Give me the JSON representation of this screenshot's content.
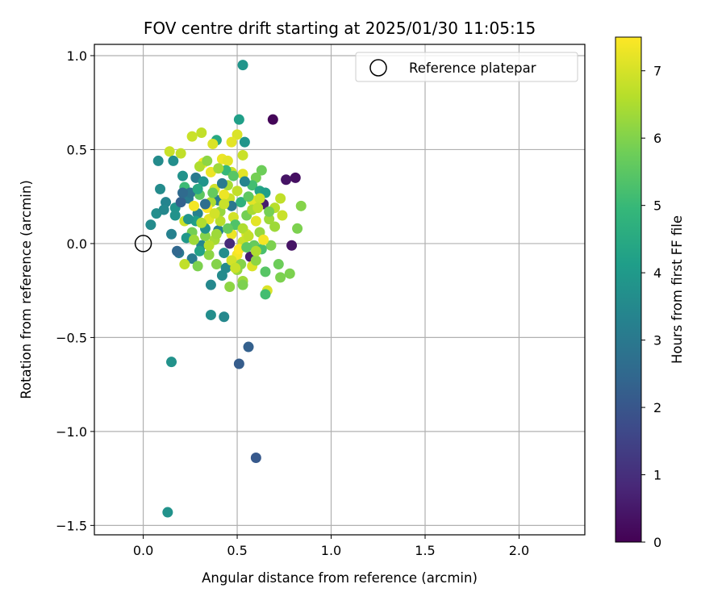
{
  "chart_data": {
    "type": "scatter",
    "title": "FOV centre drift starting at 2025/01/30 11:05:15",
    "xlabel": "Angular distance from reference (arcmin)",
    "ylabel": "Rotation from reference (arcmin)",
    "xlim": [
      -0.26,
      2.35
    ],
    "ylim": [
      -1.55,
      1.06
    ],
    "xticks": [
      0.0,
      0.5,
      1.0,
      1.5,
      2.0
    ],
    "xtick_labels": [
      "0.0",
      "0.5",
      "1.0",
      "1.5",
      "2.0"
    ],
    "yticks": [
      -1.5,
      -1.0,
      -0.5,
      0.0,
      0.5,
      1.0
    ],
    "ytick_labels": [
      "−1.5",
      "−1.0",
      "−0.5",
      "0.0",
      "0.5",
      "1.0"
    ],
    "grid": true,
    "legend": {
      "position": "top-right",
      "entries": [
        "Reference platepar"
      ]
    },
    "reference_point": {
      "x": 0.0,
      "y": 0.0,
      "name": "Reference platepar"
    },
    "colorbar": {
      "label": "Hours from first FF file",
      "range": [
        0,
        7.5
      ],
      "ticks": [
        0,
        1,
        2,
        3,
        4,
        5,
        6,
        7
      ],
      "tick_labels": [
        "0",
        "1",
        "2",
        "3",
        "4",
        "5",
        "6",
        "7"
      ],
      "colormap": [
        "#440154",
        "#482878",
        "#3e4989",
        "#31688e",
        "#26828e",
        "#1f9e89",
        "#35b779",
        "#6ece58",
        "#b5de2b",
        "#fde725"
      ]
    },
    "points": [
      [
        0.53,
        0.95,
        3.9
      ],
      [
        0.51,
        0.66,
        4.2
      ],
      [
        0.69,
        0.66,
        0.1
      ],
      [
        0.5,
        0.58,
        7.1
      ],
      [
        0.54,
        0.54,
        3.9
      ],
      [
        0.47,
        0.54,
        7.2
      ],
      [
        0.31,
        0.59,
        6.8
      ],
      [
        0.26,
        0.57,
        6.9
      ],
      [
        0.39,
        0.55,
        4.5
      ],
      [
        0.14,
        0.49,
        6.9
      ],
      [
        0.2,
        0.48,
        6.8
      ],
      [
        0.08,
        0.44,
        3.6
      ],
      [
        0.16,
        0.44,
        3.7
      ],
      [
        0.37,
        0.53,
        7.1
      ],
      [
        0.42,
        0.45,
        7.3
      ],
      [
        0.32,
        0.43,
        7.4
      ],
      [
        0.45,
        0.44,
        7.2
      ],
      [
        0.53,
        0.47,
        6.9
      ],
      [
        0.63,
        0.39,
        5.8
      ],
      [
        0.76,
        0.34,
        0.4
      ],
      [
        0.81,
        0.35,
        0.3
      ],
      [
        0.21,
        0.36,
        3.8
      ],
      [
        0.28,
        0.35,
        3.1
      ],
      [
        0.36,
        0.38,
        7.3
      ],
      [
        0.47,
        0.38,
        6.9
      ],
      [
        0.53,
        0.37,
        7.2
      ],
      [
        0.6,
        0.35,
        5.9
      ],
      [
        0.09,
        0.29,
        3.6
      ],
      [
        0.22,
        0.3,
        5.1
      ],
      [
        0.32,
        0.33,
        3.9
      ],
      [
        0.38,
        0.29,
        7.0
      ],
      [
        0.45,
        0.31,
        6.5
      ],
      [
        0.58,
        0.31,
        5.2
      ],
      [
        0.62,
        0.28,
        4.4
      ],
      [
        0.65,
        0.27,
        4.2
      ],
      [
        0.12,
        0.22,
        3.4
      ],
      [
        0.17,
        0.19,
        3.9
      ],
      [
        0.24,
        0.24,
        3.1
      ],
      [
        0.3,
        0.26,
        5.6
      ],
      [
        0.4,
        0.23,
        3.2
      ],
      [
        0.46,
        0.24,
        6.9
      ],
      [
        0.52,
        0.22,
        4.8
      ],
      [
        0.58,
        0.23,
        7.2
      ],
      [
        0.64,
        0.21,
        0.6
      ],
      [
        0.73,
        0.24,
        6.8
      ],
      [
        0.84,
        0.2,
        6.1
      ],
      [
        0.07,
        0.16,
        3.7
      ],
      [
        0.11,
        0.18,
        3.5
      ],
      [
        0.17,
        0.15,
        3.8
      ],
      [
        0.22,
        0.12,
        6.9
      ],
      [
        0.29,
        0.16,
        3.3
      ],
      [
        0.35,
        0.13,
        7.2
      ],
      [
        0.41,
        0.17,
        6.3
      ],
      [
        0.48,
        0.14,
        7.0
      ],
      [
        0.55,
        0.15,
        5.9
      ],
      [
        0.6,
        0.12,
        7.2
      ],
      [
        0.67,
        0.13,
        6.4
      ],
      [
        0.74,
        0.15,
        6.9
      ],
      [
        0.04,
        0.1,
        3.6
      ],
      [
        0.26,
        0.06,
        5.9
      ],
      [
        0.33,
        0.04,
        6.1
      ],
      [
        0.4,
        0.07,
        3.3
      ],
      [
        0.47,
        0.05,
        7.3
      ],
      [
        0.55,
        0.05,
        7.1
      ],
      [
        0.62,
        0.06,
        6.3
      ],
      [
        0.7,
        0.09,
        6.4
      ],
      [
        0.82,
        0.08,
        6.0
      ],
      [
        0.15,
        0.05,
        3.3
      ],
      [
        0.23,
        0.03,
        4.0
      ],
      [
        0.31,
        -0.01,
        3.5
      ],
      [
        0.38,
        0.02,
        6.5
      ],
      [
        0.46,
        0.0,
        0.9
      ],
      [
        0.53,
        0.01,
        6.9
      ],
      [
        0.59,
        -0.01,
        5.7
      ],
      [
        0.68,
        -0.01,
        6.0
      ],
      [
        0.79,
        -0.01,
        0.4
      ],
      [
        0.19,
        -0.05,
        3.0
      ],
      [
        0.26,
        -0.08,
        3.1
      ],
      [
        0.35,
        -0.06,
        6.2
      ],
      [
        0.43,
        -0.05,
        3.7
      ],
      [
        0.5,
        -0.06,
        7.4
      ],
      [
        0.57,
        -0.07,
        0.6
      ],
      [
        0.63,
        -0.03,
        5.3
      ],
      [
        0.72,
        -0.11,
        5.8
      ],
      [
        0.22,
        -0.11,
        6.8
      ],
      [
        0.29,
        -0.12,
        6.0
      ],
      [
        0.39,
        -0.11,
        6.1
      ],
      [
        0.44,
        -0.13,
        3.6
      ],
      [
        0.5,
        -0.14,
        6.3
      ],
      [
        0.58,
        -0.12,
        7.1
      ],
      [
        0.65,
        -0.15,
        5.5
      ],
      [
        0.78,
        -0.16,
        6.0
      ],
      [
        0.73,
        -0.18,
        6.0
      ],
      [
        0.53,
        -0.2,
        6.4
      ],
      [
        0.46,
        -0.23,
        6.2
      ],
      [
        0.36,
        -0.22,
        3.5
      ],
      [
        0.53,
        -0.22,
        6.0
      ],
      [
        0.66,
        -0.25,
        7.1
      ],
      [
        0.65,
        -0.27,
        5.2
      ],
      [
        0.36,
        -0.38,
        3.7
      ],
      [
        0.43,
        -0.39,
        3.5
      ],
      [
        0.56,
        -0.55,
        2.3
      ],
      [
        0.51,
        -0.64,
        2.2
      ],
      [
        0.15,
        -0.63,
        3.8
      ],
      [
        0.6,
        -1.14,
        2.1
      ],
      [
        0.13,
        -1.43,
        3.8
      ],
      [
        0.3,
        0.41,
        6.6
      ],
      [
        0.44,
        0.39,
        5.0
      ],
      [
        0.27,
        0.2,
        7.4
      ],
      [
        0.36,
        0.22,
        6.6
      ],
      [
        0.43,
        0.26,
        7.3
      ],
      [
        0.5,
        0.28,
        6.8
      ],
      [
        0.56,
        0.25,
        5.6
      ],
      [
        0.62,
        0.24,
        6.9
      ],
      [
        0.34,
        0.19,
        7.5
      ],
      [
        0.41,
        0.12,
        6.7
      ],
      [
        0.49,
        0.1,
        5.4
      ],
      [
        0.53,
        0.08,
        6.6
      ],
      [
        0.58,
        0.18,
        6.5
      ],
      [
        0.28,
        0.12,
        4.2
      ],
      [
        0.39,
        0.05,
        6.4
      ],
      [
        0.45,
        0.08,
        5.7
      ],
      [
        0.51,
        -0.03,
        7.5
      ],
      [
        0.56,
        0.04,
        6.8
      ],
      [
        0.33,
        0.08,
        3.8
      ],
      [
        0.2,
        0.22,
        2.3
      ],
      [
        0.25,
        0.27,
        2.9
      ],
      [
        0.33,
        0.21,
        2.7
      ],
      [
        0.47,
        0.2,
        3.0
      ],
      [
        0.42,
        0.32,
        3.1
      ],
      [
        0.54,
        0.33,
        3.4
      ],
      [
        0.29,
        0.29,
        4.5
      ],
      [
        0.37,
        0.27,
        5.7
      ],
      [
        0.48,
        0.36,
        5.5
      ],
      [
        0.4,
        0.4,
        6.4
      ],
      [
        0.34,
        0.44,
        6.2
      ],
      [
        0.61,
        0.19,
        6.8
      ],
      [
        0.7,
        0.19,
        6.7
      ],
      [
        0.67,
        0.17,
        5.9
      ],
      [
        0.43,
        0.21,
        6.9
      ],
      [
        0.38,
        0.16,
        7.0
      ],
      [
        0.31,
        0.11,
        6.6
      ],
      [
        0.27,
        0.02,
        6.4
      ],
      [
        0.35,
        -0.01,
        6.7
      ],
      [
        0.47,
        -0.09,
        7.0
      ],
      [
        0.52,
        -0.11,
        6.1
      ],
      [
        0.6,
        -0.09,
        6.2
      ],
      [
        0.42,
        -0.17,
        3.6
      ],
      [
        0.3,
        -0.04,
        4.3
      ],
      [
        0.24,
        0.13,
        3.9
      ],
      [
        0.21,
        0.27,
        2.6
      ],
      [
        0.18,
        -0.04,
        2.5
      ],
      [
        0.49,
        -0.13,
        6.9
      ],
      [
        0.55,
        -0.02,
        5.6
      ],
      [
        0.64,
        0.02,
        7.4
      ],
      [
        0.6,
        -0.04,
        6.6
      ]
    ]
  }
}
